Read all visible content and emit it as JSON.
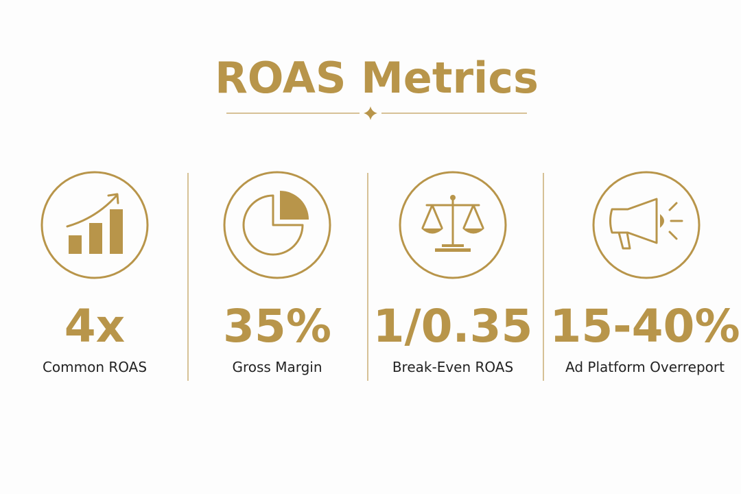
{
  "title": "ROAS Metrics",
  "metrics": [
    {
      "value": "4x",
      "label": "Common ROAS"
    },
    {
      "value": "35%",
      "label": "Gross Margin"
    },
    {
      "value": "1/0.35",
      "label": "Break-Even ROAS"
    },
    {
      "value": "15-40%",
      "label": "Ad Platform Overreport"
    }
  ]
}
